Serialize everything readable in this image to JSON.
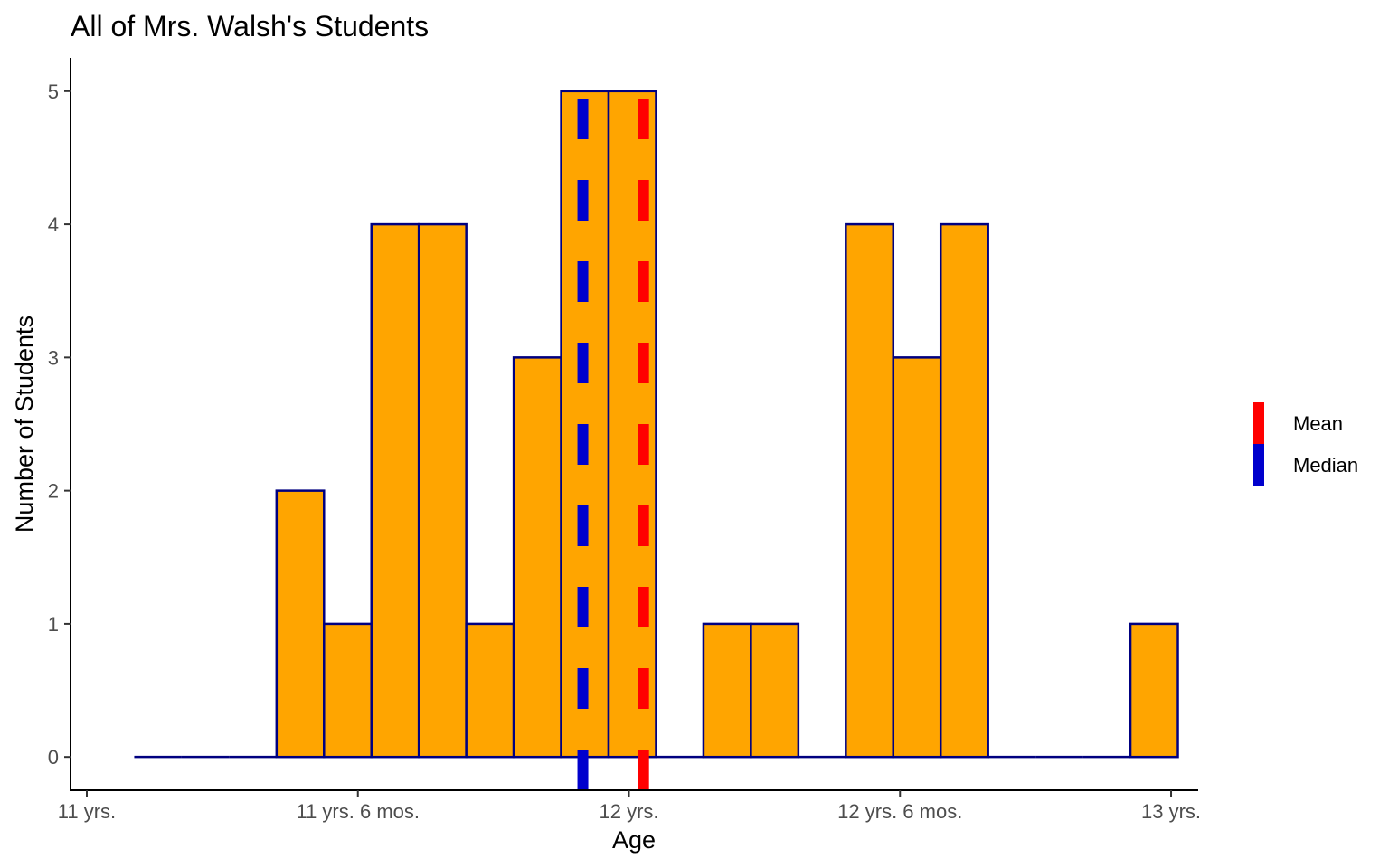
{
  "chart_data": {
    "type": "bar",
    "title": "All of Mrs. Walsh's Students",
    "xlabel": "Age",
    "ylabel": "Number of Students",
    "x_unit": "years",
    "xlim": [
      10.97,
      13.05
    ],
    "ylim": [
      -0.25,
      5.25
    ],
    "grid": false,
    "legend_position": "right",
    "x_ticks": [
      {
        "value": 11.0,
        "label": "11 yrs."
      },
      {
        "value": 11.5,
        "label": "11 yrs. 6 mos."
      },
      {
        "value": 12.0,
        "label": "12 yrs."
      },
      {
        "value": 12.5,
        "label": "12 yrs. 6 mos."
      },
      {
        "value": 13.0,
        "label": "13 yrs."
      }
    ],
    "y_ticks": [
      {
        "value": 0,
        "label": "0"
      },
      {
        "value": 1,
        "label": "1"
      },
      {
        "value": 2,
        "label": "2"
      },
      {
        "value": 3,
        "label": "3"
      },
      {
        "value": 4,
        "label": "4"
      },
      {
        "value": 5,
        "label": "5"
      }
    ],
    "bin_width": 0.0875,
    "bins": [
      {
        "start": 11.0875,
        "end": 11.175,
        "count": 0
      },
      {
        "start": 11.175,
        "end": 11.2625,
        "count": 0
      },
      {
        "start": 11.2625,
        "end": 11.35,
        "count": 0
      },
      {
        "start": 11.35,
        "end": 11.4375,
        "count": 2
      },
      {
        "start": 11.4375,
        "end": 11.525,
        "count": 1
      },
      {
        "start": 11.525,
        "end": 11.6125,
        "count": 4
      },
      {
        "start": 11.6125,
        "end": 11.7,
        "count": 4
      },
      {
        "start": 11.7,
        "end": 11.7875,
        "count": 1
      },
      {
        "start": 11.7875,
        "end": 11.875,
        "count": 3
      },
      {
        "start": 11.875,
        "end": 11.9625,
        "count": 5
      },
      {
        "start": 11.9625,
        "end": 12.05,
        "count": 5
      },
      {
        "start": 12.05,
        "end": 12.1375,
        "count": 0
      },
      {
        "start": 12.1375,
        "end": 12.225,
        "count": 1
      },
      {
        "start": 12.225,
        "end": 12.3125,
        "count": 1
      },
      {
        "start": 12.3125,
        "end": 12.4,
        "count": 0
      },
      {
        "start": 12.4,
        "end": 12.4875,
        "count": 4
      },
      {
        "start": 12.4875,
        "end": 12.575,
        "count": 3
      },
      {
        "start": 12.575,
        "end": 12.6625,
        "count": 4
      },
      {
        "start": 12.6625,
        "end": 12.75,
        "count": 0
      },
      {
        "start": 12.75,
        "end": 12.8375,
        "count": 0
      },
      {
        "start": 12.8375,
        "end": 12.925,
        "count": 0
      },
      {
        "start": 12.925,
        "end": 13.0125,
        "count": 1
      }
    ],
    "reference_lines": [
      {
        "name": "Mean",
        "value": 12.027,
        "color": "#ff0000",
        "style": "dashed"
      },
      {
        "name": "Median",
        "value": 11.915,
        "color": "#0000cd",
        "style": "dashed"
      }
    ],
    "colors": {
      "bar_fill": "#ffa500",
      "bar_outline": "#000080",
      "axis": "#000000",
      "tick_label": "#4d4d4d"
    }
  }
}
